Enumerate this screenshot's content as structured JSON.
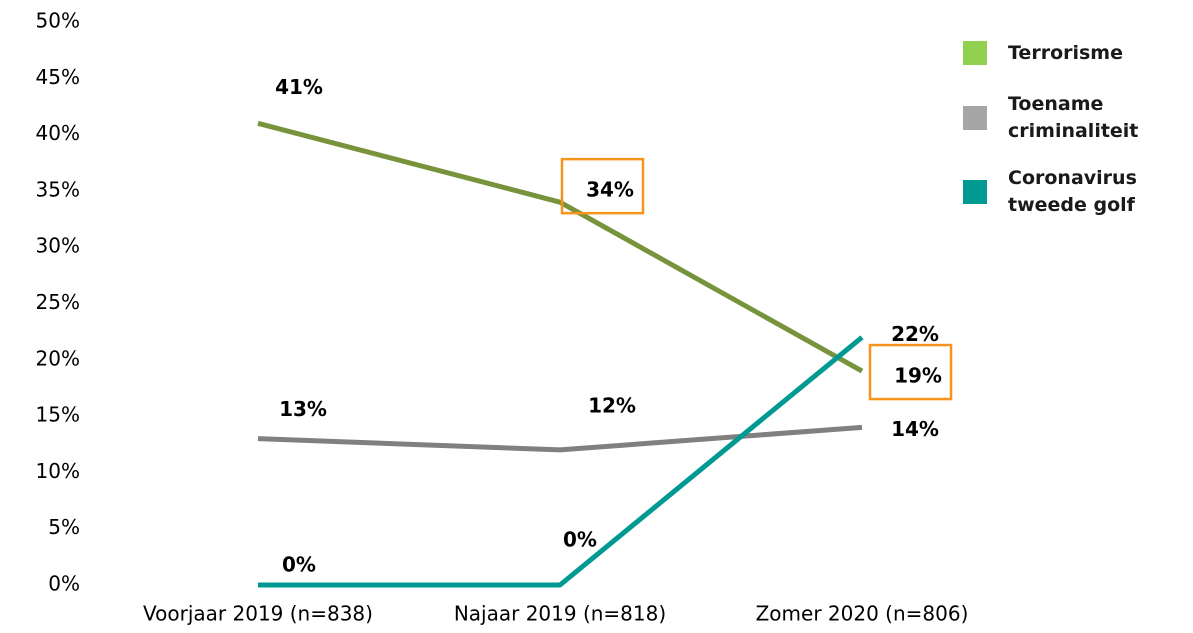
{
  "chart_data": {
    "type": "line",
    "categories": [
      "Voorjaar 2019 (n=838)",
      "Najaar 2019 (n=818)",
      "Zomer 2020 (n=806)"
    ],
    "series": [
      {
        "name": "Terrorisme",
        "color": "#77933c",
        "legend_color": "#92d050",
        "values": [
          41,
          34,
          19
        ],
        "value_labels": [
          "41%",
          "34%",
          "19%"
        ],
        "highlight": [
          false,
          true,
          true
        ]
      },
      {
        "name": "Toename criminaliteit",
        "color": "#808080",
        "legend_color": "#a6a6a6",
        "values": [
          13,
          12,
          14
        ],
        "value_labels": [
          "13%",
          "12%",
          "14%"
        ],
        "highlight": [
          false,
          false,
          false
        ]
      },
      {
        "name": "Coronavirus tweede golf",
        "color": "#009a93",
        "legend_color": "#009a93",
        "values": [
          0,
          0,
          22
        ],
        "value_labels": [
          "0%",
          "0%",
          "22%"
        ],
        "highlight": [
          false,
          false,
          false
        ]
      }
    ],
    "highlight_color": "#f7941d",
    "ylim": [
      0,
      50
    ],
    "yticks": [
      {
        "value": 0,
        "label": "0%"
      },
      {
        "value": 5,
        "label": "5%"
      },
      {
        "value": 10,
        "label": "10%"
      },
      {
        "value": 15,
        "label": "15%"
      },
      {
        "value": 20,
        "label": "20%"
      },
      {
        "value": 25,
        "label": "25%"
      },
      {
        "value": 30,
        "label": "30%"
      },
      {
        "value": 35,
        "label": "35%"
      },
      {
        "value": 40,
        "label": "40%"
      },
      {
        "value": 45,
        "label": "45%"
      },
      {
        "value": 50,
        "label": "50%"
      }
    ],
    "grid": false,
    "legend": "right"
  }
}
